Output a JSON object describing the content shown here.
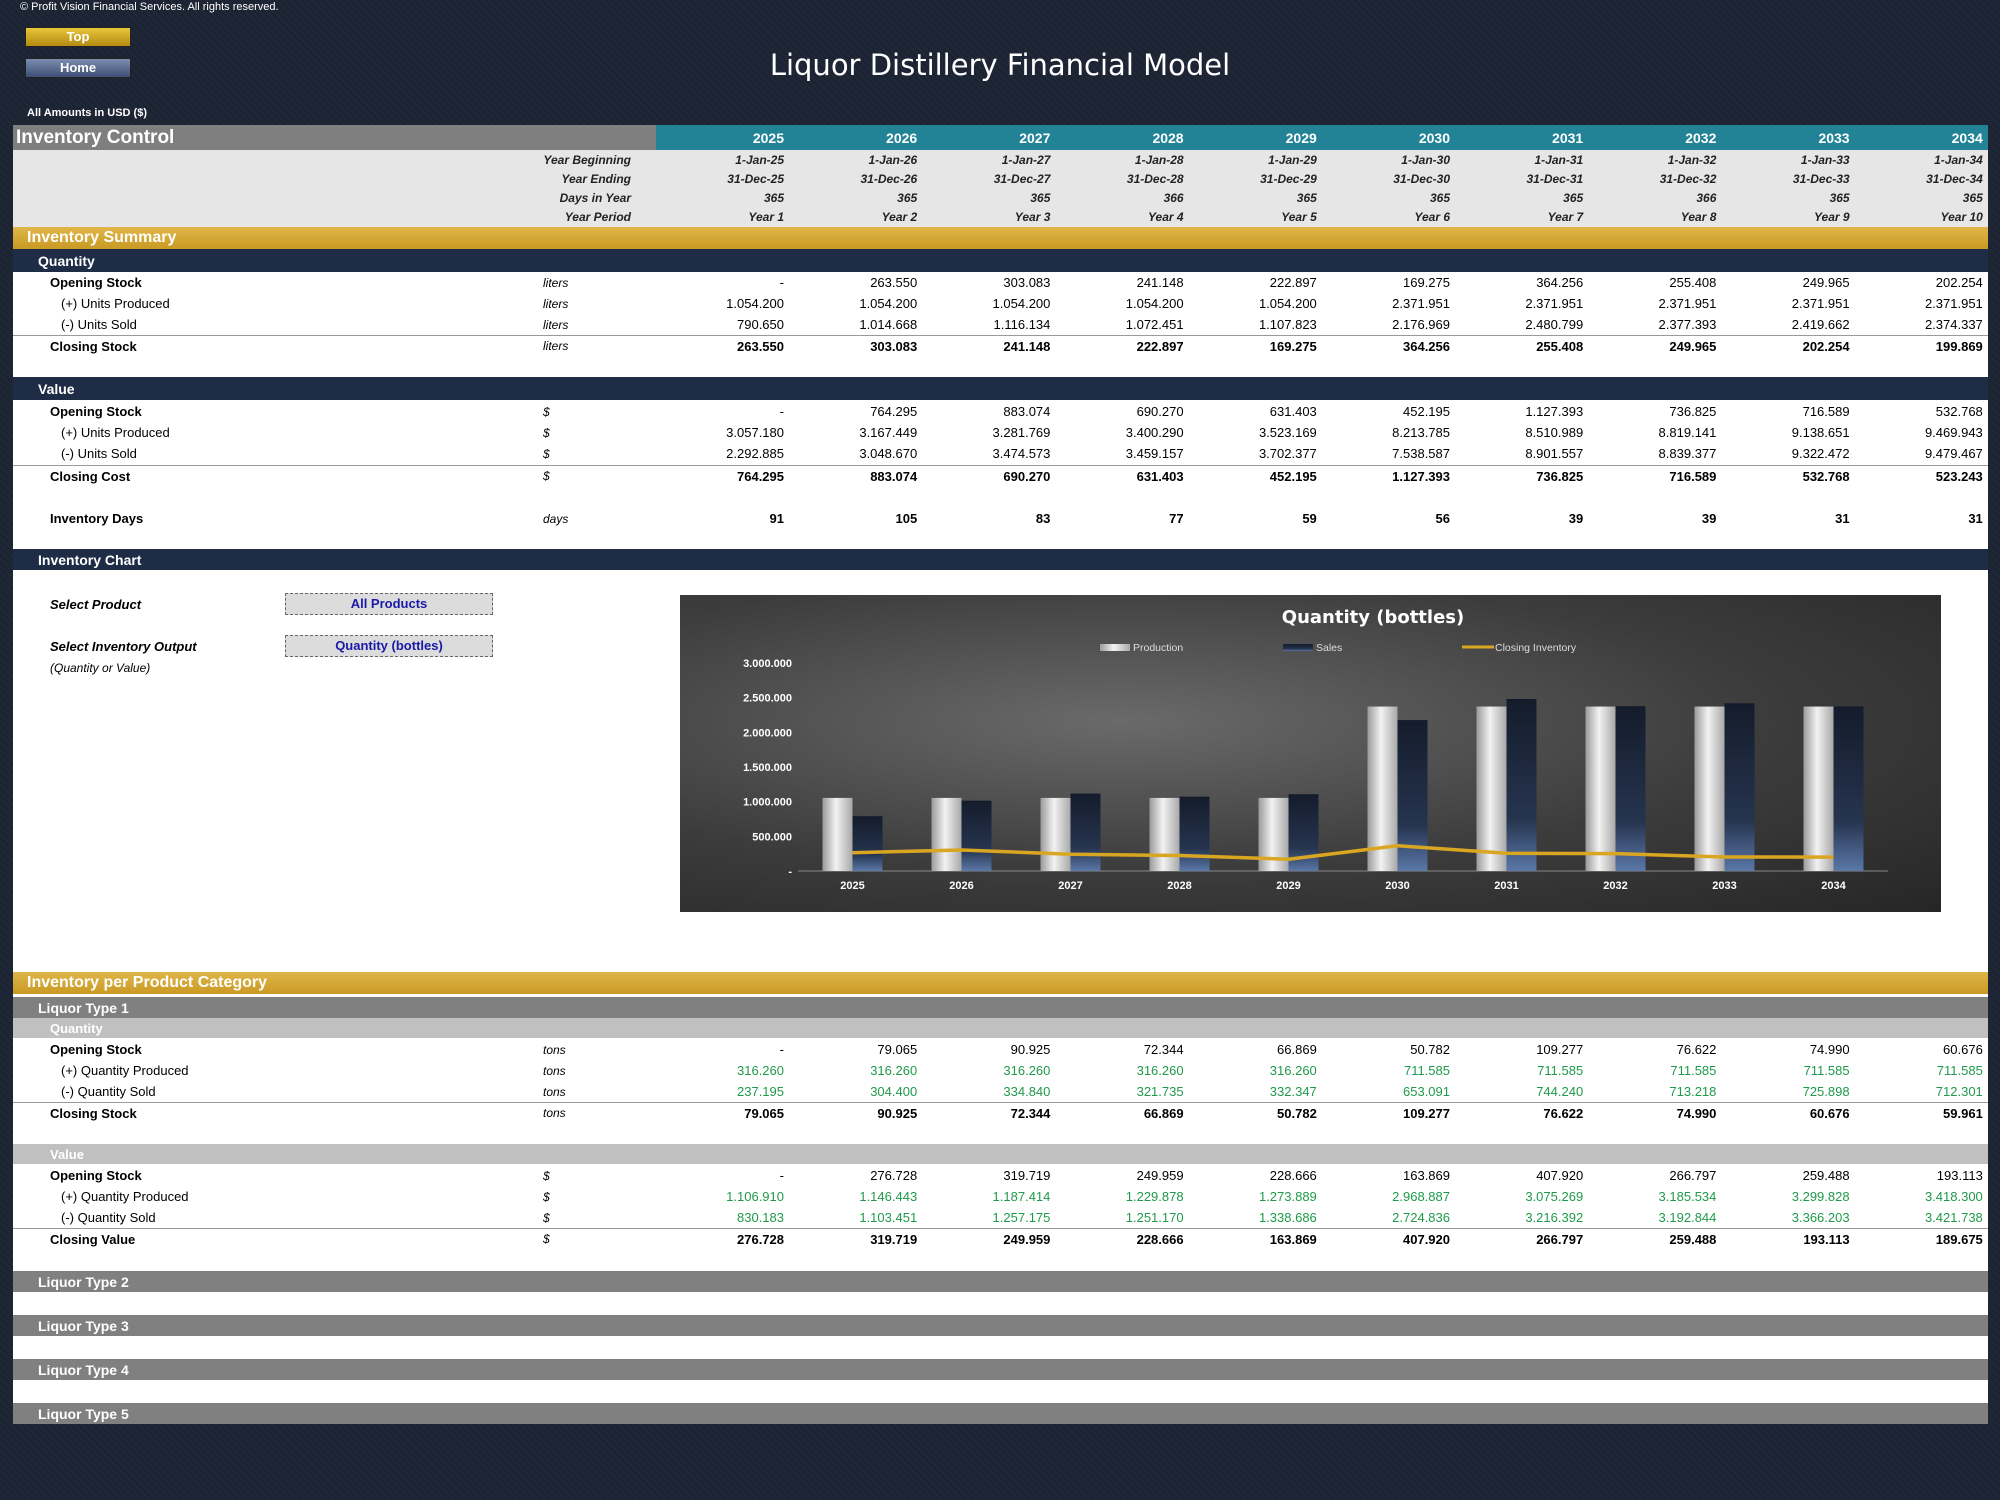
{
  "header": {
    "copyright": "© Profit Vision Financial Services. All rights reserved.",
    "top_button": "Top",
    "home_button": "Home",
    "title": "Liquor Distillery Financial Model",
    "amounts_note": "All Amounts in  USD ($)"
  },
  "table": {
    "title": "Inventory Control",
    "years": [
      "2025",
      "2026",
      "2027",
      "2028",
      "2029",
      "2030",
      "2031",
      "2032",
      "2033",
      "2034"
    ],
    "meta": [
      {
        "label": "Year Beginning",
        "values": [
          "1-Jan-25",
          "1-Jan-26",
          "1-Jan-27",
          "1-Jan-28",
          "1-Jan-29",
          "1-Jan-30",
          "1-Jan-31",
          "1-Jan-32",
          "1-Jan-33",
          "1-Jan-34"
        ]
      },
      {
        "label": "Year Ending",
        "values": [
          "31-Dec-25",
          "31-Dec-26",
          "31-Dec-27",
          "31-Dec-28",
          "31-Dec-29",
          "31-Dec-30",
          "31-Dec-31",
          "31-Dec-32",
          "31-Dec-33",
          "31-Dec-34"
        ]
      },
      {
        "label": "Days in Year",
        "values": [
          "365",
          "365",
          "365",
          "366",
          "365",
          "365",
          "365",
          "366",
          "365",
          "365"
        ]
      },
      {
        "label": "Year Period",
        "values": [
          "Year 1",
          "Year 2",
          "Year 3",
          "Year 4",
          "Year 5",
          "Year 6",
          "Year 7",
          "Year 8",
          "Year 9",
          "Year 10"
        ]
      }
    ]
  },
  "summary": {
    "title": "Inventory Summary",
    "quantity_label": "Quantity",
    "quantity_rows": [
      {
        "label": "Opening Stock",
        "unit": "liters",
        "values": [
          "-",
          "263.550",
          "303.083",
          "241.148",
          "222.897",
          "169.275",
          "364.256",
          "255.408",
          "249.965",
          "202.254"
        ]
      },
      {
        "label": "(+) Units Produced",
        "unit": "liters",
        "values": [
          "1.054.200",
          "1.054.200",
          "1.054.200",
          "1.054.200",
          "1.054.200",
          "2.371.951",
          "2.371.951",
          "2.371.951",
          "2.371.951",
          "2.371.951"
        ]
      },
      {
        "label": "(-) Units Sold",
        "unit": "liters",
        "values": [
          "790.650",
          "1.014.668",
          "1.116.134",
          "1.072.451",
          "1.107.823",
          "2.176.969",
          "2.480.799",
          "2.377.393",
          "2.419.662",
          "2.374.337"
        ]
      },
      {
        "label": "Closing Stock",
        "unit": "liters",
        "values": [
          "263.550",
          "303.083",
          "241.148",
          "222.897",
          "169.275",
          "364.256",
          "255.408",
          "249.965",
          "202.254",
          "199.869"
        ]
      }
    ],
    "value_label": "Value",
    "value_rows": [
      {
        "label": "Opening Stock",
        "unit": "$",
        "values": [
          "-",
          "764.295",
          "883.074",
          "690.270",
          "631.403",
          "452.195",
          "1.127.393",
          "736.825",
          "716.589",
          "532.768"
        ]
      },
      {
        "label": "(+) Units Produced",
        "unit": "$",
        "values": [
          "3.057.180",
          "3.167.449",
          "3.281.769",
          "3.400.290",
          "3.523.169",
          "8.213.785",
          "8.510.989",
          "8.819.141",
          "9.138.651",
          "9.469.943"
        ]
      },
      {
        "label": "(-) Units Sold",
        "unit": "$",
        "values": [
          "2.292.885",
          "3.048.670",
          "3.474.573",
          "3.459.157",
          "3.702.377",
          "7.538.587",
          "8.901.557",
          "8.839.377",
          "9.322.472",
          "9.479.467"
        ]
      },
      {
        "label": "Closing Cost",
        "unit": "$",
        "values": [
          "764.295",
          "883.074",
          "690.270",
          "631.403",
          "452.195",
          "1.127.393",
          "736.825",
          "716.589",
          "532.768",
          "523.243"
        ]
      }
    ],
    "inventory_days": {
      "label": "Inventory Days",
      "unit": "days",
      "values": [
        "91",
        "105",
        "83",
        "77",
        "59",
        "56",
        "39",
        "39",
        "31",
        "31"
      ]
    }
  },
  "chart_section": {
    "title": "Inventory Chart",
    "select_product_label": "Select Product",
    "select_product_value": "All Products",
    "select_output_label": "Select Inventory Output",
    "select_output_value": "Quantity (bottles)",
    "select_output_note": "(Quantity or Value)"
  },
  "chart_data": {
    "type": "bar",
    "title": "Quantity (bottles)",
    "categories": [
      "2025",
      "2026",
      "2027",
      "2028",
      "2029",
      "2030",
      "2031",
      "2032",
      "2033",
      "2034"
    ],
    "series": [
      {
        "name": "Production",
        "type": "bar",
        "values": [
          1054200,
          1054200,
          1054200,
          1054200,
          1054200,
          2371951,
          2371951,
          2371951,
          2371951,
          2371951
        ]
      },
      {
        "name": "Sales",
        "type": "bar",
        "values": [
          790650,
          1014668,
          1116134,
          1072451,
          1107823,
          2176969,
          2480799,
          2377393,
          2419662,
          2374337
        ]
      },
      {
        "name": "Closing Inventory",
        "type": "line",
        "values": [
          263550,
          303083,
          241148,
          222897,
          169275,
          364256,
          255408,
          249965,
          202254,
          199869
        ]
      }
    ],
    "yticks": [
      "-",
      "500.000",
      "1.000.000",
      "1.500.000",
      "2.000.000",
      "2.500.000",
      "3.000.000"
    ],
    "ylim": [
      0,
      3000000
    ],
    "legend": "top",
    "colors": {
      "production": "#d9d9d9",
      "sales": "#1f2d44",
      "closing": "#d9a621"
    }
  },
  "per_category": {
    "title": "Inventory per Product Category",
    "type1": {
      "label": "Liquor Type 1",
      "quantity_label": "Quantity",
      "quantity_rows": [
        {
          "label": "Opening Stock",
          "unit": "tons",
          "values": [
            "-",
            "79.065",
            "90.925",
            "72.344",
            "66.869",
            "50.782",
            "109.277",
            "76.622",
            "74.990",
            "60.676"
          ]
        },
        {
          "label": "(+) Quantity Produced",
          "unit": "tons",
          "values": [
            "316.260",
            "316.260",
            "316.260",
            "316.260",
            "316.260",
            "711.585",
            "711.585",
            "711.585",
            "711.585",
            "711.585"
          ]
        },
        {
          "label": "(-) Quantity Sold",
          "unit": "tons",
          "values": [
            "237.195",
            "304.400",
            "334.840",
            "321.735",
            "332.347",
            "653.091",
            "744.240",
            "713.218",
            "725.898",
            "712.301"
          ]
        },
        {
          "label": "Closing Stock",
          "unit": "tons",
          "values": [
            "79.065",
            "90.925",
            "72.344",
            "66.869",
            "50.782",
            "109.277",
            "76.622",
            "74.990",
            "60.676",
            "59.961"
          ]
        }
      ],
      "value_label": "Value",
      "value_rows": [
        {
          "label": "Opening Stock",
          "unit": "$",
          "values": [
            "-",
            "276.728",
            "319.719",
            "249.959",
            "228.666",
            "163.869",
            "407.920",
            "266.797",
            "259.488",
            "193.113"
          ]
        },
        {
          "label": "(+) Quantity Produced",
          "unit": "$",
          "values": [
            "1.106.910",
            "1.146.443",
            "1.187.414",
            "1.229.878",
            "1.273.889",
            "2.968.887",
            "3.075.269",
            "3.185.534",
            "3.299.828",
            "3.418.300"
          ]
        },
        {
          "label": "(-) Quantity Sold",
          "unit": "$",
          "values": [
            "830.183",
            "1.103.451",
            "1.257.175",
            "1.251.170",
            "1.338.686",
            "2.724.836",
            "3.216.392",
            "3.192.844",
            "3.366.203",
            "3.421.738"
          ]
        },
        {
          "label": "Closing Value",
          "unit": "$",
          "values": [
            "276.728",
            "319.719",
            "249.959",
            "228.666",
            "163.869",
            "407.920",
            "266.797",
            "259.488",
            "193.113",
            "189.675"
          ]
        }
      ]
    },
    "type2": "Liquor Type 2",
    "type3": "Liquor Type 3",
    "type4": "Liquor Type 4",
    "type5": "Liquor Type 5"
  }
}
